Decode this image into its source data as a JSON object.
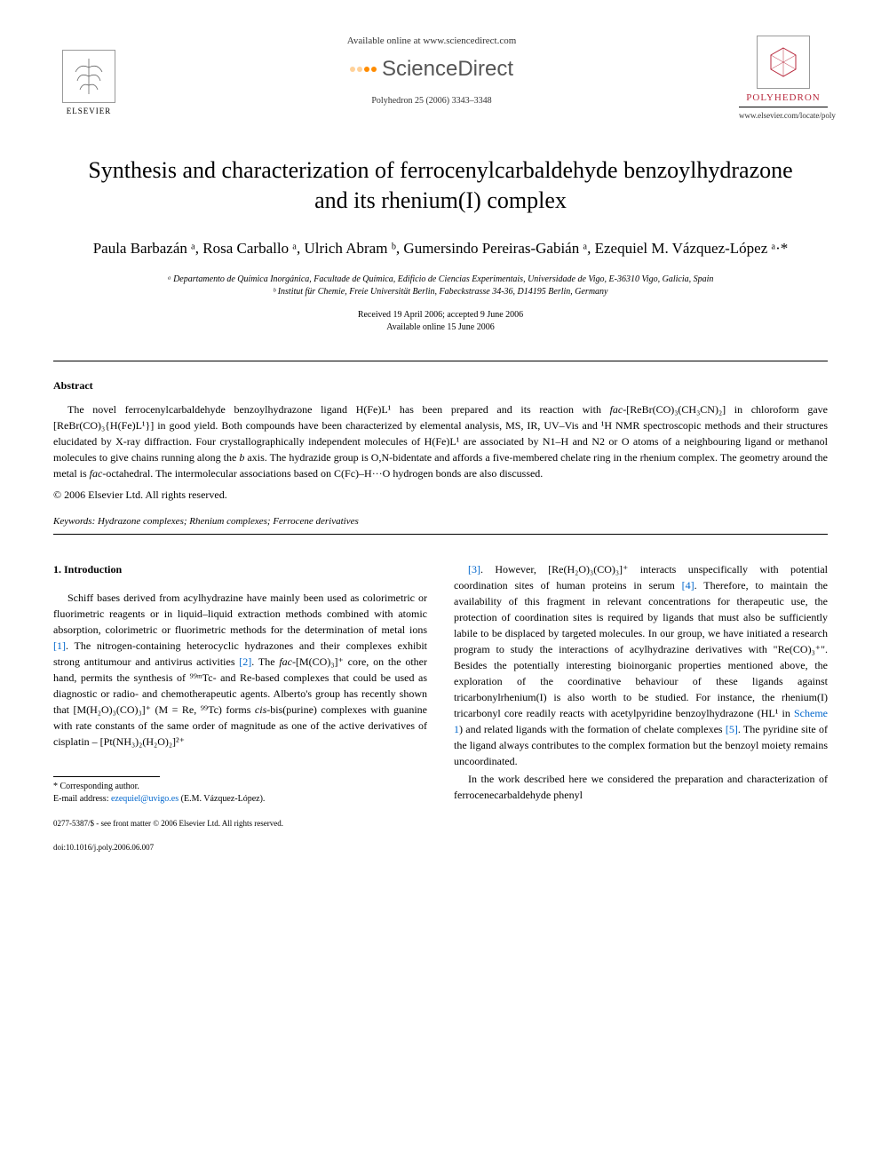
{
  "header": {
    "available_online": "Available online at www.sciencedirect.com",
    "sciencedirect": "ScienceDirect",
    "journal_citation": "Polyhedron 25 (2006) 3343–3348",
    "elsevier": "ELSEVIER",
    "journal_name": "POLYHEDRON",
    "journal_url": "www.elsevier.com/locate/poly"
  },
  "title": "Synthesis and characterization of ferrocenylcarbaldehyde benzoylhydrazone and its rhenium(I) complex",
  "authors": "Paula Barbazán ᵃ, Rosa Carballo ᵃ, Ulrich Abram ᵇ, Gumersindo Pereiras-Gabián ᵃ, Ezequiel M. Vázquez-López ᵃ·*",
  "affiliations": {
    "a": "ᵃ Departamento de Química Inorgánica, Facultade de Química, Edificio de Ciencias Experimentais, Universidade de Vigo, E-36310 Vigo, Galicia, Spain",
    "b": "ᵇ Institut für Chemie, Freie Universität Berlin, Fabeckstrasse 34-36, D14195 Berlin, Germany"
  },
  "dates": {
    "received": "Received 19 April 2006; accepted 9 June 2006",
    "online": "Available online 15 June 2006"
  },
  "abstract": {
    "heading": "Abstract",
    "text": "The novel ferrocenylcarbaldehyde benzoylhydrazone ligand H(Fe)L¹ has been prepared and its reaction with fac-[ReBr(CO)₃(CH₃CN)₂] in chloroform gave [ReBr(CO)₃{H(Fe)L¹}] in good yield. Both compounds have been characterized by elemental analysis, MS, IR, UV–Vis and ¹H NMR spectroscopic methods and their structures elucidated by X-ray diffraction. Four crystallographically independent molecules of H(Fe)L¹ are associated by N1–H and N2 or O atoms of a neighbouring ligand or methanol molecules to give chains running along the b axis. The hydrazide group is O,N-bidentate and affords a five-membered chelate ring in the rhenium complex. The geometry around the metal is fac-octahedral. The intermolecular associations based on C(Fc)–H···O hydrogen bonds are also discussed.",
    "copyright": "© 2006 Elsevier Ltd. All rights reserved."
  },
  "keywords": {
    "label": "Keywords:",
    "text": "Hydrazone complexes; Rhenium complexes; Ferrocene derivatives"
  },
  "intro": {
    "heading": "1. Introduction",
    "col1_p1": "Schiff bases derived from acylhydrazine have mainly been used as colorimetric or fluorimetric reagents or in liquid–liquid extraction methods combined with atomic absorption, colorimetric or fluorimetric methods for the determination of metal ions [1]. The nitrogen-containing heterocyclic hydrazones and their complexes exhibit strong antitumour and antivirus activities [2]. The fac-[M(CO)₃]⁺ core, on the other hand, permits the synthesis of ⁹⁹ᵐTc- and Re-based complexes that could be used as diagnostic or radio- and chemotherapeutic agents. Alberto's group has recently shown that [M(H₂O)₃(CO)₃]⁺ (M = Re, ⁹⁹Tc) forms cis-bis(purine) complexes with guanine with rate constants of the same order of magnitude as one of the active derivatives of cisplatin – [Pt(NH₃)₂(H₂O)₂]²⁺",
    "col2_p1": "[3]. However, [Re(H₂O)₃(CO)₃]⁺ interacts unspecifically with potential coordination sites of human proteins in serum [4]. Therefore, to maintain the availability of this fragment in relevant concentrations for therapeutic use, the protection of coordination sites is required by ligands that must also be sufficiently labile to be displaced by targeted molecules. In our group, we have initiated a research program to study the interactions of acylhydrazine derivatives with \"Re(CO)₃⁺\". Besides the potentially interesting bioinorganic properties mentioned above, the exploration of the coordinative behaviour of these ligands against tricarbonylrhenium(I) is also worth to be studied. For instance, the rhenium(I) tricarbonyl core readily reacts with acetylpyridine benzoylhydrazone (HL¹ in Scheme 1) and related ligands with the formation of chelate complexes [5]. The pyridine site of the ligand always contributes to the complex formation but the benzoyl moiety remains uncoordinated.",
    "col2_p2": "In the work described here we considered the preparation and characterization of ferrocenecarbaldehyde phenyl"
  },
  "footer": {
    "corr_label": "* Corresponding author.",
    "email_label": "E-mail address:",
    "email": "ezequiel@uvigo.es",
    "email_author": "(E.M. Vázquez-López).",
    "front_matter": "0277-5387/$ - see front matter © 2006 Elsevier Ltd. All rights reserved.",
    "doi": "doi:10.1016/j.poly.2006.06.007"
  },
  "colors": {
    "ref_link": "#0066cc",
    "journal_name": "#b8293d",
    "sd_orange": "#ff8c00",
    "text": "#000000",
    "background": "#ffffff"
  },
  "typography": {
    "title_size": 26,
    "author_size": 17,
    "body_size": 12,
    "small_size": 10,
    "footer_size": 9
  }
}
